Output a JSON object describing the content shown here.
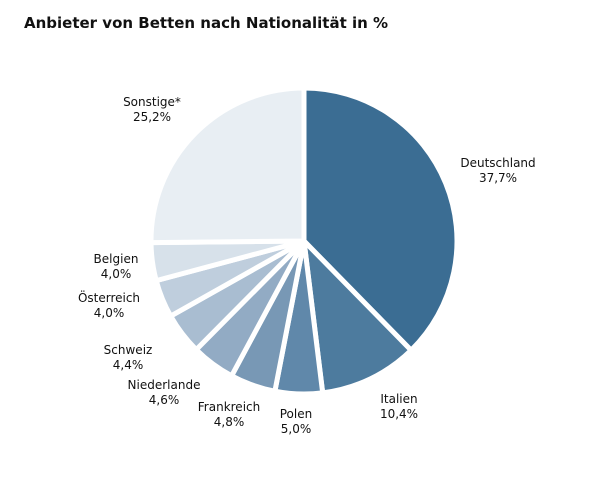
{
  "chart_data": {
    "type": "pie",
    "title": "Anbieter von Betten nach Nationalität in %",
    "slices": [
      {
        "name": "Deutschland",
        "value": 37.7,
        "value_label": "37,7%",
        "color": "#3b6d93"
      },
      {
        "name": "Italien",
        "value": 10.4,
        "value_label": "10,4%",
        "color": "#4d7b9e"
      },
      {
        "name": "Polen",
        "value": 5.0,
        "value_label": "5,0%",
        "color": "#6088aa"
      },
      {
        "name": "Frankreich",
        "value": 4.8,
        "value_label": "4,8%",
        "color": "#7898b5"
      },
      {
        "name": "Niederlande",
        "value": 4.6,
        "value_label": "4,6%",
        "color": "#92abc4"
      },
      {
        "name": "Schweiz",
        "value": 4.4,
        "value_label": "4,4%",
        "color": "#a9bdd1"
      },
      {
        "name": "Österreich",
        "value": 4.0,
        "value_label": "4,0%",
        "color": "#bfcedd"
      },
      {
        "name": "Belgien",
        "value": 4.0,
        "value_label": "4,0%",
        "color": "#d7e1ea"
      },
      {
        "name": "Sonstige*",
        "value": 25.2,
        "value_label": "25,2%",
        "color": "#e8eef3"
      }
    ]
  }
}
